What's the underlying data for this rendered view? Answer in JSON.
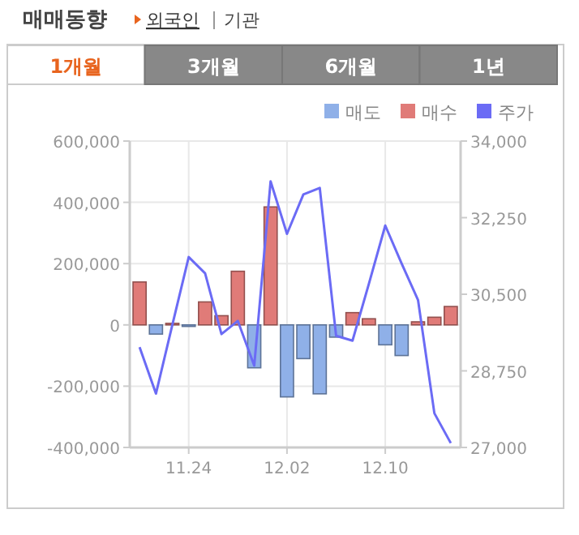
{
  "chart_data": {
    "type": "bar",
    "title": "매매동향",
    "annotations": [
      "외국인",
      "기관",
      "1개월",
      "3개월",
      "6개월",
      "1년"
    ],
    "categories": [
      null,
      null,
      null,
      "11.24",
      null,
      null,
      null,
      null,
      null,
      "12.02",
      null,
      null,
      null,
      null,
      null,
      "12.10",
      null,
      null,
      null,
      null
    ],
    "series": [
      {
        "name": "매도",
        "color": "#8fb0e8",
        "values": [
          null,
          -30000,
          null,
          -5000,
          null,
          null,
          null,
          -140000,
          null,
          -235000,
          -110000,
          -225000,
          -40000,
          null,
          null,
          -65000,
          -100000,
          null,
          null,
          null
        ]
      },
      {
        "name": "매수",
        "color": "#e07b78",
        "values": [
          140000,
          null,
          5000,
          null,
          75000,
          30000,
          175000,
          null,
          385000,
          null,
          null,
          null,
          null,
          40000,
          20000,
          null,
          null,
          10000,
          25000,
          60000
        ]
      },
      {
        "name": "주가",
        "color": "#6b6bf5",
        "type": "line",
        "axis": "y2",
        "values": [
          29290,
          28230,
          29800,
          31350,
          30980,
          29590,
          29890,
          28870,
          33080,
          31880,
          32780,
          32930,
          29550,
          29440,
          30740,
          32070,
          31200,
          30370,
          27780,
          27100
        ]
      }
    ],
    "ylim": [
      -400000,
      600000
    ],
    "yticks": [
      {
        "value": -400000,
        "label": "-400,000"
      },
      {
        "value": -200000,
        "label": "-200,000"
      },
      0,
      {
        "value": 200000,
        "label": "200,000"
      },
      {
        "value": 400000,
        "label": "400,000"
      },
      {
        "value": 600000,
        "label": "600,000"
      }
    ],
    "y2lim": [
      27000,
      34000
    ],
    "y2ticks": [
      {
        "value": 27000,
        "label": "27,000"
      },
      {
        "value": 28750,
        "label": "28,750"
      },
      {
        "value": 30500,
        "label": "30,500"
      },
      {
        "value": 32250,
        "label": "32,250"
      },
      {
        "value": 34000,
        "label": "34,000"
      }
    ],
    "grid": true,
    "legend": "top right",
    "marker": "none"
  }
}
